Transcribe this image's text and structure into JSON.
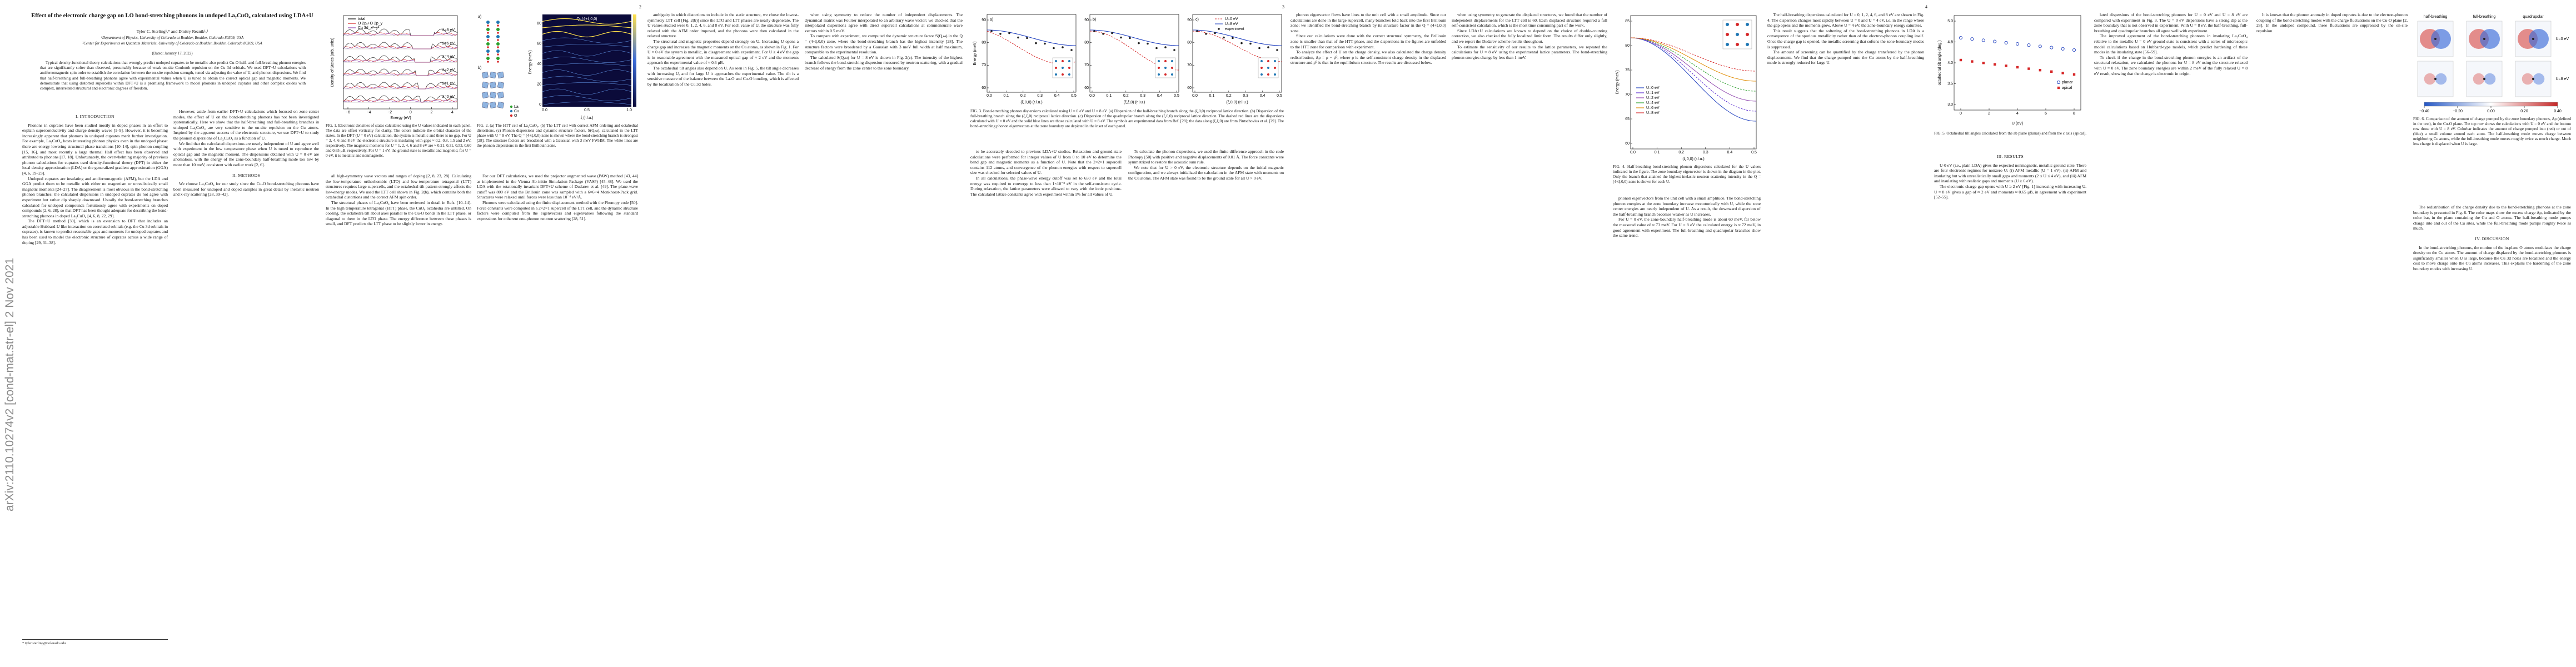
{
  "arxiv_id": "arXiv:2110.10274v2  [cond-mat.str-el]  2 Nov 2021",
  "page_numbers": [
    "2",
    "3",
    "4"
  ],
  "header": {
    "title": "Effect of the electronic charge gap on LO bond-stretching phonons in undoped La₂CuO₄ calculated using LDA+U",
    "authors": "Tyler C. Sterling¹,* and Dmitry Reznik¹,²",
    "affiliations": [
      "¹Department of Physics, University of Colorado at Boulder, Boulder, Colorado 80309, USA",
      "²Center for Experiments on Quantum Materials, University of Colorado at Boulder, Boulder, Colorado 80309, USA"
    ],
    "date": "(Dated: January 17, 2022)",
    "abstract": "Typical density-functional theory calculations that wrongly predict undoped cuprates to be metallic also predict Cu-O half- and full-breathing phonon energies that are significantly softer than observed, presumably because of weak on-site Coulomb repulsion on the Cu 3d orbitals. We used DFT+U calculations with antiferromagnetic spin order to establish the correlation between the on-site repulsion strength, tuned via adjusting the value of U, and phonon dispersions. We find that half-breathing and full-breathing phonons agree with experimental values when U is tuned to obtain the correct optical gap and magnetic moments. We demonstrate that using distorted supercells within DFT+U is a promising framework to model phonons in undoped cuprates and other complex oxides with complex, interrelated structural and electronic degrees of freedom."
  },
  "footnote": "* tyler.sterling@colorado.edu",
  "headings": [
    "I. INTRODUCTION",
    "II. METHODS",
    "III. RESULTS",
    "IV. DISCUSSION"
  ],
  "paragraphs": [
    "Phonons in cuprates have been studied mostly in doped phases in an effort to explain superconductivity and charge density waves [1–9]. However, it is becoming increasingly apparent that phonons in undoped cuprates merit further investigation. For example, La₂CuO₄ hosts interesting phonon physics even in the undoped phase: there are energy lowering structural phase transitions [10–14], spin-phonon coupling [15, 16], and most recently a large thermal Hall effect has been observed and attributed to phonons [17, 18]. Unfortunately, the overwhelming majority of previous phonon calculations for cuprates used density-functional theory (DFT) in either the local density approximation (LDA) or the generalized gradient approximation (GGA) [4, 6, 19–23].",
    "Undoped cuprates are insulating and antiferromagnetic (AFM), but the LDA and GGA predict them to be metallic with either no magnetism or unrealistically small magnetic moments [24–27]. The disagreement is most obvious in the bond-stretching phonon branches: the calculated dispersions in undoped cuprates do not agree with experiment but rather dip sharply downward. Usually the bond-stretching branches calculated for undoped compounds fortuitously agree with experiments on doped compounds [2, 6, 28], so that DFT has been thought adequate for describing the bond-stretching phonons in doped La₂CuO₄ [4, 6, 8, 22, 29].",
    "The DFT+U method [30], which is an extension to DFT that includes an adjustable Hubbard-U like interaction on correlated orbitals (e.g. the Cu 3d orbitals in cuprates), is known to predict reasonable gaps and moments for undoped cuprates and has been used to model the electronic structure of cuprates across a wide range of doping [29, 31–38].",
    "However, aside from earlier DFT+U calculations which focused on zone-center modes, the effect of U on the bond-stretching phonons has not been investigated systematically. Here we show that the half-breathing and full-breathing branches in undoped La₂CuO₄ are very sensitive to the on-site repulsion on the Cu atoms. Inspired by the apparent success of the electronic structure, we use DFT+U to study the phonon dispersions of La₂CuO₄ as a function of U.",
    "We find that the calculated dispersions are nearly independent of U and agree well with experiment in the low temperature phase when U is tuned to reproduce the optical gap and the magnetic moment. The dispersions obtained with U = 0 eV are anomalous, with the energy of the zone-boundary half-breathing mode too low by more than 10 meV, consistent with earlier work [2, 6].",
    "We choose La₂CuO₄ for our study since the Cu-O bond-stretching phonons have been measured for undoped and doped samples in great detail by inelastic neutron and x-ray scattering [28, 39–42].",
    "all high-symmetry wave vectors and ranges of doping [2, 8, 23, 28]. Calculating the low-temperature orthorhombic (LTO) and low-temperature tetragonal (LTT) structures requires large supercells, and the octahedral tilt pattern strongly affects the low-energy modes. We used the LTT cell shown in Fig. 2(b), which contains both the octahedral distortions and the correct AFM spin order.",
    "The structural phases of La₂CuO₄ have been reviewed in detail in Refs. [10–14]. In the high temperature tetragonal (HTT) phase, the CuO₆ octahedra are untilted. On cooling, the octahedra tilt about axes parallel to the Cu-O bonds in the LTT phase, or diagonal to them in the LTO phase. The energy difference between these phases is small, and DFT predicts the LTT phase to be slightly lower in energy.",
    "For our DFT calculations, we used the projector augmented wave (PAW) method [43, 44] as implemented in the Vienna Ab-initio Simulation Package (VASP) [45–48]. We used the LDA with the rotationally invariant DFT+U scheme of Dudarev et al. [49]. The plane-wave cutoff was 800 eV and the Brillouin zone was sampled with a 6×6×4 Monkhorst-Pack grid. Structures were relaxed until forces were less than 10⁻⁴ eV/Å.",
    "Phonons were calculated using the finite displacement method with the Phonopy code [50]. Force constants were computed in a 2×2×1 supercell of the LTT cell, and the dynamic structure factors were computed from the eigenvectors and eigenvalues following the standard expressions for coherent one-phonon neutron scattering [28, 51].",
    "ambiguity in which distortions to include in the static structure, we chose the lowest-symmetry LTT cell [Fig. 2(b)] since the LTO and LTT phases are nearly degenerate. The U values studied were 0, 1, 2, 4, 6, and 8 eV. For each value of U, the structure was fully relaxed with the AFM order imposed, and the phonons were then calculated in the relaxed structure.",
    "The structural and magnetic properties depend strongly on U. Increasing U opens a charge gap and increases the magnetic moments on the Cu atoms, as shown in Fig. 1. For U = 0 eV the system is metallic, in disagreement with experiment. For U ≥ 4 eV the gap is in reasonable agreement with the measured optical gap of ≈ 2 eV and the moments approach the experimental value of ≈ 0.6 μB.",
    "The octahedral tilt angles also depend on U. As seen in Fig. 5, the tilt angle decreases with increasing U, and for large U it approaches the experimental value. The tilt is a sensitive measure of the balance between the La-O and Cu-O bonding, which is affected by the localization of the Cu 3d holes.",
    "when using symmetry to reduce the number of independent displacements. The dynamical matrix was Fourier interpolated to an arbitrary wave vector; we checked that the interpolated dispersions agree with direct supercell calculations at commensurate wave vectors within 0.5 meV.",
    "To compare with experiment, we computed the dynamic structure factor S(Q,ω) in the Q = (4+ξ,0,0) zone, where the bond-stretching branch has the highest intensity [28]. The structure factors were broadened by a Gaussian with 3 meV full width at half maximum, comparable to the experimental resolution.",
    "The calculated S(Q,ω) for U = 8 eV is shown in Fig. 2(c). The intensity of the highest branch follows the bond-stretching dispersion measured by neutron scattering, with a gradual decrease of energy from the zone center to the zone boundary.",
    "to be accurately decoded to previous LDA+U studies. Relaxation and ground-state calculations were performed for integer values of U from 0 to 10 eV to determine the band gap and magnetic moments as a function of U. Note that the 2×2×1 supercell contains 112 atoms, and convergence of the phonon energies with respect to supercell size was checked for selected values of U.",
    "In all calculations, the phase-wave energy cutoff was set to 650 eV and the total energy was required to converge to less than 1×10⁻⁸ eV in the self-consistent cycle. During relaxation, the lattice parameters were allowed to vary with the ionic positions. The calculated lattice constants agree with experiment within 1% for all values of U.",
    "To calculate the phonon dispersions, we used the finite-difference approach in the code Phonopy [50] with positive and negative displacements of 0.01 Å. The force constants were symmetrized to restore the acoustic sum rule.",
    "We note that for U > 0 eV, the electronic structure depends on the initial magnetic configuration, and we always initialized the calculation in the AFM state with moments on the Cu atoms. The AFM state was found to be the ground state for all U > 0 eV.",
    "phonon eigenvector flows have lines to the unit cell with a small amplitude. Since our calculations are done in the large supercell, many branches fold back into the first Brillouin zone; we identified the bond-stretching branch by its structure factor in the Q = (4+ξ,0,0) zone.",
    "Since our calculations were done with the correct structural symmetry, the Brillouin zone is smaller than that of the HTT phase, and the dispersions in the figures are unfolded to the HTT zone for comparison with experiment.",
    "To analyze the effect of U on the charge density, we also calculated the charge density redistribution, Δρ = ρ − ρ⁰, where ρ is the self-consistent charge density in the displaced structure and ρ⁰ is that in the equilibrium structure. The results are discussed below.",
    "when using symmetry to generate the displaced structures, we found that the number of independent displacements for the LTT cell is 60. Each displaced structure required a full self-consistent calculation, which is the most time consuming part of the work.",
    "Since LDA+U calculations are known to depend on the choice of double-counting correction, we also checked the fully localized limit form. The results differ only slightly, and we report the Dudarev scheme results throughout.",
    "To estimate the sensitivity of our results to the lattice parameters, we repeated the calculations for U = 8 eV using the experimental lattice parameters. The bond-stretching phonon energies change by less than 1 meV.",
    "phonon eigenvectors from the unit cell with a small amplitude. The bond-stretching phonon energies at the zone boundary increase monotonically with U, while the zone center energies are nearly independent of U. As a result, the downward dispersion of the half-breathing branch becomes weaker as U increases.",
    "For U = 0 eV, the zone-boundary half-breathing mode is about 60 meV, far below the measured value of ≈ 73 meV. For U = 8 eV the calculated energy is ≈ 72 meV, in good agreement with experiment. The full-breathing and quadrupolar branches show the same trend.",
    "The half-breathing dispersions calculated for U = 0, 1, 2, 4, 6, and 8 eV are shown in Fig. 4. The dispersion changes most rapidly between U = 0 and U = 4 eV, i.e. in the range where the gap opens and the moments grow. Above U = 4 eV, the zone-boundary energy saturates.",
    "This result suggests that the softening of the bond-stretching phonons in LDA is a consequence of the spurious metallicity rather than of the electron-phonon coupling itself. Once the charge gap is opened, the metallic screening that softens the zone-boundary modes is suppressed.",
    "The amount of screening can be quantified by the charge transferred by the phonon displacements. We find that the charge pumped onto the Cu atoms by the half-breathing mode is strongly reduced for large U.",
    "U-0 eV (i.e., plain LDA) gives the expected nonmagnetic, metallic ground state. There are four electronic regimes for nonzero U: (i) AFM metallic (U = 1 eV), (ii) AFM and insulating but with unrealistically small gaps and moments (2 ≤ U ≤ 4 eV), and (iii) AFM and insulating with realistic gaps and moments (U ≥ 6 eV).",
    "The electronic charge gap opens with U ≥ 2 eV [Fig. 1] increasing with increasing U. U = 8 eV gives a gap of ≈ 2 eV and moments ≈ 0.65 μB, in agreement with experiment [52–55].",
    "lated dispersions of the bond-stretching phonons for U = 0 eV and U = 8 eV are compared with experiment in Fig. 3. The U = 0 eV dispersions have a strong dip at the zone boundary that is not observed in experiment. With U = 8 eV, the half-breathing, full-breathing and quadrupolar branches all agree well with experiment.",
    "The improved agreement of the bond-stretching phonons in insulating La₂CuO₄ relative to the metallic U = 0 eV ground state is consistent with a series of microscopic model calculations based on Hubbard-type models, which predict hardening of these modes in the insulating state [56–59].",
    "To check if the change in the bond-stretching phonon energies is an artifact of the structural relaxation, we calculated the phonons for U = 8 eV using the structure relaxed with U = 0 eV. The zone boundary energies are within 2 meV of the fully relaxed U = 8 eV result, showing that the change is electronic in origin.",
    "It is known that the phonon anomaly in doped cuprates is due to the electron-phonon coupling of the bond-stretching modes with the charge fluctuations on the Cu-O plane [2, 28]. In the undoped compound, these fluctuations are suppressed by the on-site repulsion.",
    "The redistribution of the charge density due to the bond-stretching phonons at the zone boundary is presented in Fig. 6. The color maps show the excess charge Δρ, indicated by the color bar, in the plane containing the Cu and O atoms. The half-breathing mode pumps charge into and out of the Cu sites, while the full-breathing mode pumps roughly twice as much.",
    "In the bond-stretching phonons, the motion of the in-plane O atoms modulates the charge density on the Cu atoms. The amount of charge displaced by the bond-stretching phonons is significantly smaller when U is large, because the Cu 3d holes are localized and the energy cost to move charge onto the Cu atoms increases. This explains the hardening of the zone boundary modes with increasing U."
  ],
  "figures": [
    {
      "caption": "FIG. 1. Electronic densities of states calculated using the U values indicated in each panel. The data are offset vertically for clarity. The colors indicate the orbital character of the states. In the DFT (U = 0 eV) calculation, the system is metallic and there is no gap. For U = 2, 4, 6 and 8 eV the electronic structure is insulating with gaps ≈ 0.2, 0.8, 1.5 and 2 eV, respectively. The magnetic moments for U = 1, 2, 4, 6 and 8 eV are ≈ 0.21, 0.31, 0.53, 0.60 and 0.65 μB, respectively. For U = 1 eV, the ground state is metallic and magnetic; for U = 0 eV, it is metallic and nonmagnetic.",
      "legend": [
        "total",
        "O 2pₓ+O 2p_y",
        "Cu 3d_x²−y²"
      ],
      "panel_labels": [
        "U=8 eV",
        "U=6 eV",
        "U=4 eV",
        "U=2 eV",
        "U=1 eV",
        "U=0 eV"
      ],
      "xlabel": "Energy (eV)",
      "ylabel": "Density of States (arb. units)",
      "xticks": [
        "−6",
        "−4",
        "−2",
        "0",
        "2",
        "4"
      ]
    },
    {
      "caption": "FIG. 2. (a) The HTT cell of La₂CuO₄. (b) The LTT cell with correct AFM ordering and octahedral distortions. (c) Phonon dispersions and dynamic structure factors, S(Q,ω), calculated in the LTT phase with U = 8 eV. The Q = (4+ξ,0,0) zone is shown where the bond-stretching branch is strongest [28]. The structure factors are broadened with a Gaussian with 3 meV FWHM. The white lines are the phonon dispersions in the first Brillouin zone.",
      "panel_labels": [
        "a)",
        "b)",
        "c)"
      ],
      "annotation": "Q=(4+ξ,0,0)",
      "atom_labels": [
        "La",
        "Cu",
        "O"
      ],
      "ylabel": "Energy (meV)",
      "xlabel": "ξ (r.l.u.)",
      "yticks": [
        "0",
        "20",
        "40",
        "60",
        "80"
      ],
      "xticks": [
        "0.0",
        "0.5",
        "1.0"
      ]
    },
    {
      "caption": "FIG. 3. Bond-stretching phonon dispersions calculated using U = 0 eV and U = 8 eV. (a) Dispersion of the half-breathing branch along the (ξ,0,0) reciprocal lattice direction. (b) Dispersion of the full-breathing branch along the (ξ,ξ,0) reciprocal lattice direction. (c) Dispersion of the quadrupolar branch along the (ξ,0,0) reciprocal lattice direction. The dashed red lines are the dispersions calculated with U = 0 eV and the solid blue lines are those calculated with U = 8 eV. The symbols are experimental data from Ref. [28]; the data along (ξ,ξ,0) are from Pintschovius et al. [29]. The bond-stretching phonon eigenvectors at the zone boundary are depicted in the inset of each panel.",
      "panel_labels": [
        "a)",
        "b)",
        "c)"
      ],
      "legend": [
        "U=0 eV",
        "U=8 eV",
        "experiment"
      ],
      "ylabel": "Energy (meV)",
      "xlabels": [
        "(ξ,0,0) (r.l.u.)",
        "(ξ,ξ,0) (r.l.u.)",
        "(ξ,0,0) (r.l.u.)"
      ],
      "yticks": [
        "60",
        "70",
        "80",
        "90"
      ],
      "xticks": [
        "0.0",
        "0.1",
        "0.2",
        "0.3",
        "0.4",
        "0.5"
      ]
    },
    {
      "caption": "FIG. 4. Half-breathing bond-stretching phonon dispersions calculated for the U values indicated in the figure. The zone boundary eigenvector is shown in the diagram in the plot. Only the branch that attained the highest inelastic neutron scattering intensity in the Q = (4+ξ,0,0) zone is shown for each U.",
      "legend": [
        "U=0 eV",
        "U=1 eV",
        "U=2 eV",
        "U=4 eV",
        "U=6 eV",
        "U=8 eV"
      ],
      "ylabel": "Energy (meV)",
      "xlabel": "(ξ,0,0) (r.l.u.)",
      "yticks": [
        "60",
        "65",
        "70",
        "75",
        "80",
        "85"
      ],
      "xticks": [
        "0.0",
        "0.1",
        "0.2",
        "0.3",
        "0.4",
        "0.5"
      ]
    },
    {
      "caption": "FIG. 5. Octahedral tilt angles calculated from the ab plane (planar) and from the c axis (apical).",
      "legend": [
        "planar",
        "apical"
      ],
      "ylabel": "octahedral tilt angle (deg.)",
      "xlabel": "U (eV)",
      "yticks": [
        "3.0",
        "3.5",
        "4.0",
        "4.5",
        "5.0"
      ],
      "xticks": [
        "0",
        "2",
        "4",
        "6",
        "8"
      ]
    },
    {
      "caption": "FIG. 6. Comparison of the amount of charge pumped by the zone boundary phonons, Δρ (defined in the text), in the Cu-O plane. The top row shows the calculations with U = 0 eV and the bottom row those with U = 8 eV. Colorbar indicates the amount of charge pumped into (red) or out of (blue) a small volume around each atom. The half-breathing mode moves charge between neighboring Cu atoms, while the full-breathing mode moves roughly twice as much charge. Much less charge is displaced when U is large.",
      "panel_labels": [
        "half-breathing",
        "full-breathing",
        "quadrupolar"
      ],
      "row_labels": [
        "U=0 eV",
        "U=8 eV"
      ],
      "colorbar_ticks": [
        "−0.40",
        "−0.20",
        "0.00",
        "0.20",
        "0.40"
      ]
    }
  ]
}
